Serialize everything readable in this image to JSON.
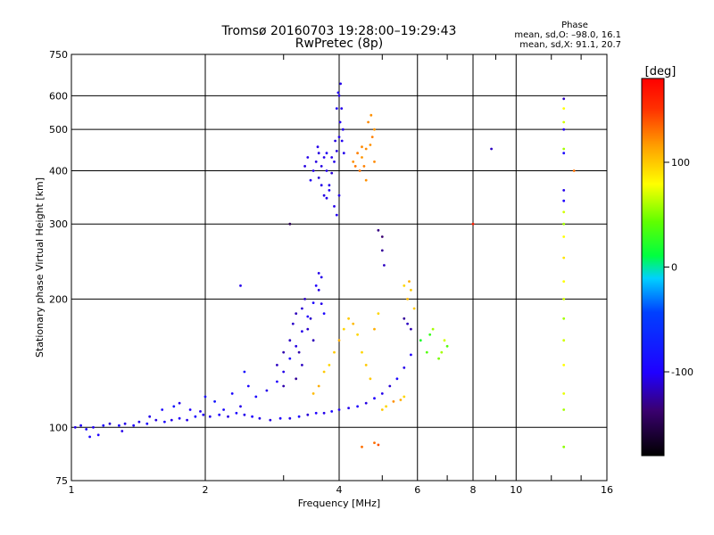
{
  "chart_data": {
    "type": "scatter",
    "title": "Tromsø 20160703 19:28:00–19:29:43",
    "subtitle": "RwPretec (8p)",
    "phase_box": {
      "heading": "Phase",
      "line_o": "mean, sd,O: –98.0, 16.1",
      "line_x": "mean, sd,X:  91.1, 20.7"
    },
    "xlabel": "Frequency [MHz]",
    "ylabel": "Stationary phase Virtual Height [km]",
    "x_scale": "log",
    "y_scale": "log",
    "xlim": [
      1,
      16
    ],
    "ylim": [
      75,
      750
    ],
    "x_ticks": [
      1,
      2,
      4,
      6,
      8,
      10,
      16
    ],
    "y_ticks": [
      75,
      100,
      200,
      300,
      400,
      500,
      600,
      750
    ],
    "grid": true,
    "colorbar": {
      "title": "[deg]",
      "range": [
        -180,
        180
      ],
      "ticks": [
        100,
        0,
        -100
      ]
    },
    "series": [
      {
        "values": [
          [
            1.02,
            100,
            -110
          ],
          [
            1.05,
            101,
            -105
          ],
          [
            1.08,
            99,
            -100
          ],
          [
            1.12,
            100,
            -108
          ],
          [
            1.18,
            101,
            -102
          ],
          [
            1.22,
            102,
            -115
          ],
          [
            1.28,
            101,
            -100
          ],
          [
            1.32,
            102,
            -110
          ],
          [
            1.38,
            101,
            -105
          ],
          [
            1.42,
            103,
            -110
          ],
          [
            1.48,
            102,
            -100
          ],
          [
            1.55,
            104,
            -112
          ],
          [
            1.62,
            103,
            -100
          ],
          [
            1.68,
            104,
            -110
          ],
          [
            1.75,
            105,
            -105
          ],
          [
            1.82,
            104,
            -110
          ],
          [
            1.9,
            106,
            -100
          ],
          [
            1.98,
            107,
            -108
          ],
          [
            2.05,
            106,
            -110
          ],
          [
            2.15,
            107,
            -105
          ],
          [
            2.25,
            106,
            -112
          ],
          [
            2.35,
            108,
            -100
          ],
          [
            2.45,
            107,
            -110
          ],
          [
            2.55,
            106,
            -105
          ],
          [
            2.65,
            105,
            -110
          ],
          [
            2.8,
            104,
            -112
          ],
          [
            2.95,
            105,
            -105
          ],
          [
            3.1,
            105,
            -110
          ],
          [
            3.25,
            106,
            -100
          ],
          [
            3.4,
            107,
            -115
          ],
          [
            3.55,
            108,
            -105
          ],
          [
            3.7,
            108,
            -110
          ],
          [
            3.85,
            109,
            -100
          ],
          [
            4.0,
            110,
            -108
          ],
          [
            4.2,
            111,
            -110
          ],
          [
            4.4,
            112,
            -100
          ],
          [
            4.6,
            114,
            -112
          ],
          [
            4.8,
            117,
            -105
          ],
          [
            5.0,
            120,
            -110
          ],
          [
            5.2,
            125,
            -115
          ],
          [
            5.4,
            130,
            -100
          ],
          [
            5.6,
            138,
            -110
          ],
          [
            5.8,
            148,
            -105
          ],
          [
            1.5,
            106,
            -110
          ],
          [
            1.6,
            110,
            -100
          ],
          [
            1.7,
            112,
            -90
          ],
          [
            1.75,
            114,
            -110
          ],
          [
            1.85,
            110,
            -105
          ],
          [
            1.95,
            109,
            -110
          ],
          [
            2.2,
            110,
            -100
          ],
          [
            2.4,
            112,
            -110
          ],
          [
            2.6,
            118,
            -100
          ],
          [
            2.75,
            122,
            -110
          ],
          [
            2.9,
            128,
            -105
          ],
          [
            3.0,
            135,
            -110
          ],
          [
            3.1,
            145,
            -100
          ],
          [
            3.2,
            155,
            -112
          ],
          [
            3.3,
            168,
            -110
          ],
          [
            3.4,
            182,
            -105
          ],
          [
            3.5,
            196,
            -100
          ],
          [
            3.6,
            210,
            -112
          ],
          [
            3.65,
            225,
            -110
          ],
          [
            2.9,
            140,
            -120
          ],
          [
            3.0,
            150,
            -125
          ],
          [
            3.1,
            160,
            -120
          ],
          [
            3.15,
            175,
            -118
          ],
          [
            3.2,
            185,
            -122
          ],
          [
            3.25,
            150,
            -125
          ],
          [
            3.3,
            140,
            -120
          ],
          [
            3.4,
            170,
            -118
          ],
          [
            3.5,
            160,
            -122
          ],
          [
            3.3,
            190,
            -115
          ],
          [
            3.2,
            130,
            -130
          ],
          [
            3.0,
            125,
            -125
          ],
          [
            3.35,
            200,
            -120
          ],
          [
            3.45,
            180,
            -118
          ],
          [
            3.6,
            230,
            -110
          ],
          [
            3.55,
            215,
            -105
          ],
          [
            3.65,
            195,
            -110
          ],
          [
            3.7,
            185,
            -100
          ],
          [
            2.0,
            118,
            -95
          ],
          [
            2.1,
            115,
            -90
          ],
          [
            2.3,
            120,
            -100
          ],
          [
            2.45,
            135,
            -95
          ],
          [
            2.5,
            125,
            -100
          ],
          [
            3.6,
            385,
            -115
          ],
          [
            3.65,
            410,
            -112
          ],
          [
            3.7,
            430,
            -110
          ],
          [
            3.75,
            400,
            -108
          ],
          [
            3.8,
            370,
            -110
          ],
          [
            3.85,
            395,
            -115
          ],
          [
            3.9,
            420,
            -110
          ],
          [
            3.95,
            445,
            -112
          ],
          [
            4.0,
            480,
            -110
          ],
          [
            4.02,
            520,
            -108
          ],
          [
            4.05,
            560,
            -110
          ],
          [
            4.0,
            600,
            -112
          ],
          [
            4.03,
            640,
            -110
          ],
          [
            3.98,
            610,
            -105
          ],
          [
            4.06,
            470,
            -108
          ],
          [
            4.1,
            440,
            -110
          ],
          [
            3.7,
            350,
            -112
          ],
          [
            3.75,
            345,
            -110
          ],
          [
            3.8,
            360,
            -108
          ],
          [
            3.65,
            370,
            -110
          ],
          [
            3.55,
            420,
            -112
          ],
          [
            3.5,
            400,
            -110
          ],
          [
            3.45,
            380,
            -108
          ],
          [
            3.4,
            430,
            -110
          ],
          [
            3.35,
            410,
            -112
          ],
          [
            3.9,
            330,
            -110
          ],
          [
            3.95,
            315,
            -108
          ],
          [
            4.0,
            350,
            -110
          ],
          [
            3.6,
            440,
            -112
          ],
          [
            3.58,
            455,
            -110
          ],
          [
            3.75,
            440,
            -108
          ],
          [
            3.85,
            430,
            -110
          ],
          [
            3.92,
            470,
            -112
          ],
          [
            4.08,
            500,
            -110
          ],
          [
            3.95,
            560,
            -108
          ],
          [
            4.3,
            420,
            120
          ],
          [
            4.4,
            440,
            125
          ],
          [
            4.5,
            430,
            118
          ],
          [
            4.6,
            450,
            122
          ],
          [
            4.7,
            460,
            120
          ],
          [
            4.75,
            480,
            125
          ],
          [
            4.8,
            500,
            118
          ],
          [
            4.65,
            520,
            122
          ],
          [
            4.72,
            540,
            120
          ],
          [
            4.55,
            410,
            125
          ],
          [
            4.45,
            400,
            130
          ],
          [
            4.8,
            420,
            122
          ],
          [
            4.6,
            380,
            120
          ],
          [
            4.35,
            410,
            128
          ],
          [
            4.5,
            455,
            122
          ],
          [
            3.8,
            140,
            95
          ],
          [
            3.9,
            150,
            100
          ],
          [
            4.0,
            160,
            110
          ],
          [
            4.1,
            170,
            95
          ],
          [
            4.2,
            180,
            100
          ],
          [
            4.3,
            175,
            105
          ],
          [
            4.4,
            165,
            95
          ],
          [
            3.7,
            135,
            100
          ],
          [
            3.6,
            125,
            110
          ],
          [
            3.5,
            120,
            105
          ],
          [
            4.5,
            150,
            95
          ],
          [
            4.6,
            140,
            100
          ],
          [
            4.8,
            170,
            110
          ],
          [
            4.9,
            185,
            95
          ],
          [
            4.7,
            130,
            100
          ],
          [
            5.0,
            110,
            100
          ],
          [
            5.1,
            112,
            95
          ],
          [
            5.3,
            115,
            120
          ],
          [
            5.5,
            116,
            110
          ],
          [
            5.6,
            118,
            95
          ],
          [
            5.7,
            200,
            105
          ],
          [
            5.8,
            210,
            100
          ],
          [
            5.75,
            220,
            110
          ],
          [
            5.6,
            215,
            95
          ],
          [
            5.9,
            190,
            100
          ],
          [
            6.1,
            160,
            20
          ],
          [
            6.3,
            150,
            40
          ],
          [
            6.5,
            170,
            60
          ],
          [
            6.7,
            145,
            50
          ],
          [
            6.9,
            160,
            70
          ],
          [
            7.0,
            155,
            40
          ],
          [
            6.4,
            165,
            30
          ],
          [
            6.8,
            150,
            60
          ],
          [
            5.0,
            280,
            -140
          ],
          [
            5.0,
            260,
            -130
          ],
          [
            5.05,
            240,
            -120
          ],
          [
            4.9,
            290,
            -135
          ],
          [
            4.5,
            90,
            130
          ],
          [
            4.8,
            92,
            130
          ],
          [
            4.9,
            91,
            140
          ],
          [
            5.6,
            180,
            -130
          ],
          [
            5.7,
            175,
            -120
          ],
          [
            5.8,
            170,
            -125
          ],
          [
            12.8,
            590,
            -120
          ],
          [
            12.8,
            500,
            -110
          ],
          [
            12.8,
            440,
            -100
          ],
          [
            12.8,
            360,
            -110
          ],
          [
            12.8,
            340,
            -105
          ],
          [
            12.8,
            300,
            60
          ],
          [
            12.8,
            320,
            70
          ],
          [
            12.8,
            280,
            80
          ],
          [
            12.8,
            250,
            90
          ],
          [
            12.8,
            220,
            80
          ],
          [
            12.8,
            200,
            70
          ],
          [
            12.8,
            180,
            60
          ],
          [
            12.8,
            160,
            70
          ],
          [
            12.8,
            140,
            80
          ],
          [
            12.8,
            120,
            75
          ],
          [
            12.8,
            110,
            60
          ],
          [
            12.8,
            90,
            55
          ],
          [
            12.8,
            450,
            60
          ],
          [
            12.8,
            520,
            70
          ],
          [
            12.8,
            560,
            80
          ],
          [
            13.5,
            400,
            130
          ],
          [
            8.0,
            300,
            160
          ],
          [
            8.8,
            450,
            -120
          ],
          [
            3.1,
            300,
            -150
          ],
          [
            2.4,
            215,
            -110
          ],
          [
            1.3,
            98,
            -110
          ],
          [
            1.15,
            96,
            -105
          ],
          [
            1.1,
            95,
            -100
          ]
        ]
      }
    ]
  }
}
